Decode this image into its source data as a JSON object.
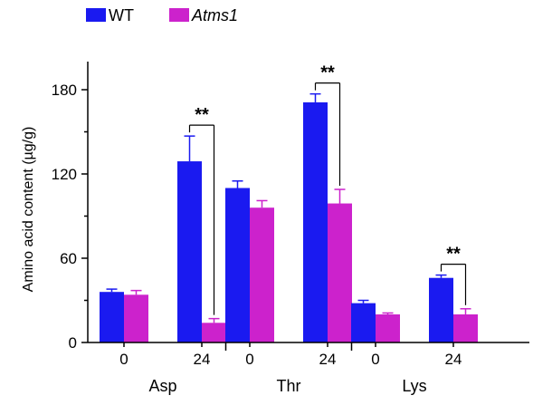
{
  "chart_data": {
    "type": "bar",
    "ylabel": "Amino acid content (µg/g)",
    "ylim": [
      0,
      200
    ],
    "yticks": [
      0,
      60,
      120,
      180
    ],
    "groups": [
      {
        "name": "Asp",
        "times": [
          "0",
          "24"
        ]
      },
      {
        "name": "Thr",
        "times": [
          "0",
          "24"
        ]
      },
      {
        "name": "Lys",
        "times": [
          "0",
          "24"
        ]
      }
    ],
    "series": [
      {
        "name": "WT",
        "color": "#1a1af0",
        "values": [
          [
            36,
            129
          ],
          [
            110,
            171
          ],
          [
            28,
            46
          ]
        ],
        "errors": [
          [
            2,
            18
          ],
          [
            5,
            6
          ],
          [
            2,
            2
          ]
        ]
      },
      {
        "name": "Atms1",
        "color": "#cc22cc",
        "italic": true,
        "values": [
          [
            34,
            14
          ],
          [
            96,
            99
          ],
          [
            20,
            20
          ]
        ],
        "errors": [
          [
            3,
            3
          ],
          [
            5,
            10
          ],
          [
            1,
            4
          ]
        ]
      }
    ],
    "significance": [
      {
        "group": 0,
        "time": 1,
        "label": "**"
      },
      {
        "group": 1,
        "time": 1,
        "label": "**"
      },
      {
        "group": 2,
        "time": 1,
        "label": "**"
      }
    ]
  }
}
